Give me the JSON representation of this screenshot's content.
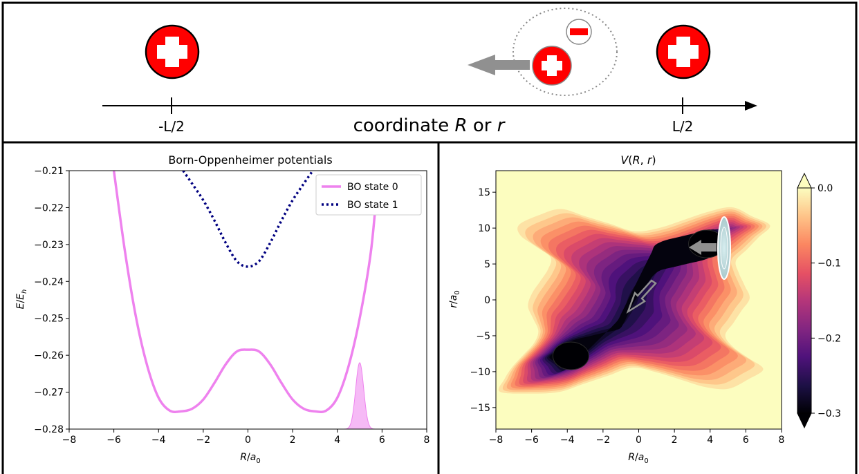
{
  "schematic": {
    "left_site_label": "-L/2",
    "right_site_label": "L/2",
    "axis_caption_parts": [
      "coordinate ",
      "R",
      " or ",
      "r"
    ],
    "proton_color": "#ff0000",
    "electron_color": "#ff0000",
    "arrow_color": "#909090"
  },
  "chart_data": [
    {
      "type": "line",
      "title": "Born-Oppenheimer potentials",
      "xlabel": "R/a0",
      "ylabel": "E/Eh",
      "xlim": [
        -8,
        8
      ],
      "ylim": [
        -0.28,
        -0.21
      ],
      "xticks": [
        -8,
        -6,
        -4,
        -2,
        0,
        2,
        4,
        6,
        8
      ],
      "xtick_labels": [
        "−8",
        "−6",
        "−4",
        "−2",
        "0",
        "2",
        "4",
        "6",
        "8"
      ],
      "yticks": [
        -0.21,
        -0.22,
        -0.23,
        -0.24,
        -0.25,
        -0.26,
        -0.27,
        -0.28
      ],
      "ytick_labels": [
        "−0.21",
        "−0.22",
        "−0.23",
        "−0.24",
        "−0.25",
        "−0.26",
        "−0.27",
        "−0.28"
      ],
      "legend_position": "top-right",
      "grid": false,
      "series": [
        {
          "name": "BO state 0",
          "color": "#ee82ee",
          "style": "solid",
          "x": [
            -6.0,
            -5.5,
            -5.0,
            -4.5,
            -4.0,
            -3.5,
            -3.0,
            -2.5,
            -2.0,
            -1.5,
            -1.0,
            -0.5,
            0.0,
            0.5,
            1.0,
            1.5,
            2.0,
            2.5,
            3.0,
            3.5,
            4.0,
            4.5,
            5.0,
            5.5,
            5.8
          ],
          "y": [
            -0.21,
            -0.232,
            -0.25,
            -0.263,
            -0.2715,
            -0.275,
            -0.2752,
            -0.2745,
            -0.272,
            -0.2675,
            -0.2625,
            -0.259,
            -0.2585,
            -0.259,
            -0.2625,
            -0.2675,
            -0.272,
            -0.2745,
            -0.2752,
            -0.275,
            -0.2715,
            -0.263,
            -0.25,
            -0.232,
            -0.213
          ]
        },
        {
          "name": "BO state 1",
          "color": "#000080",
          "style": "dotted",
          "x": [
            -2.9,
            -2.5,
            -2.0,
            -1.5,
            -1.0,
            -0.5,
            0.0,
            0.5,
            1.0,
            1.5,
            2.0,
            2.5,
            2.9
          ],
          "y": [
            -0.21,
            -0.2135,
            -0.218,
            -0.2235,
            -0.2295,
            -0.2345,
            -0.236,
            -0.2345,
            -0.2295,
            -0.2235,
            -0.218,
            -0.2135,
            -0.21
          ]
        }
      ],
      "wavepacket": {
        "center": 5.0,
        "width": 0.18,
        "peak_energy": -0.262,
        "baseline": -0.28,
        "color": "#ee82ee"
      }
    },
    {
      "type": "heatmap",
      "title": "V(R, r)",
      "xlabel": "R/a0",
      "ylabel": "r/a0",
      "xlim": [
        -8,
        8
      ],
      "ylim": [
        -18,
        18
      ],
      "xticks": [
        -8,
        -6,
        -4,
        -2,
        0,
        2,
        4,
        6,
        8
      ],
      "xtick_labels": [
        "−8",
        "−6",
        "−4",
        "−2",
        "0",
        "2",
        "4",
        "6",
        "8"
      ],
      "yticks": [
        15,
        10,
        5,
        0,
        -5,
        -10,
        -15
      ],
      "ytick_labels": [
        "15",
        "10",
        "5",
        "0",
        "−5",
        "−10",
        "−15"
      ],
      "colorbar": {
        "range": [
          -0.3,
          0.0
        ],
        "ticks": [
          0.0,
          -0.1,
          -0.2,
          -0.3
        ],
        "tick_labels": [
          "0.0",
          "−0.1",
          "−0.2",
          "−0.3"
        ],
        "levels": 20,
        "colormap": [
          "#000004",
          "#1c1044",
          "#4f127b",
          "#812581",
          "#b5367a",
          "#e55064",
          "#fb8761",
          "#fec287",
          "#fcfdbf"
        ]
      },
      "minima": [
        [
          -3.8,
          -7.8
        ],
        [
          3.8,
          7.8
        ]
      ],
      "wavepacket_center": [
        5.0,
        7.5
      ]
    }
  ]
}
